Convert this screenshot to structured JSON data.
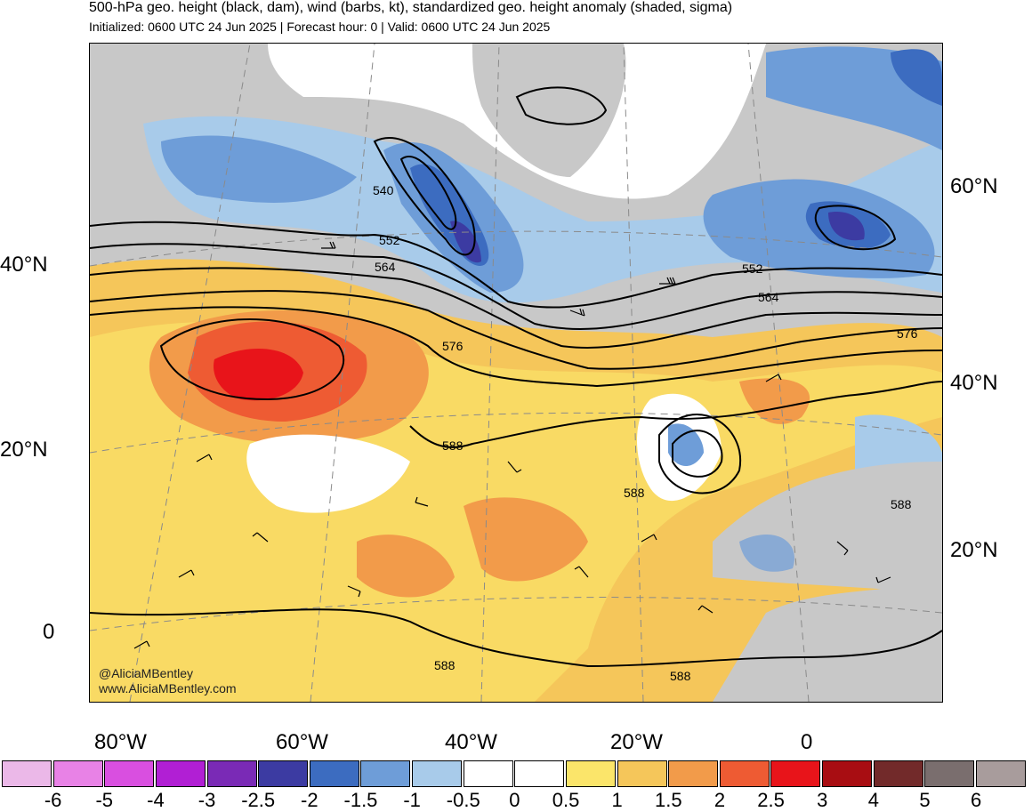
{
  "header": {
    "title": "500-hPa geo. height (black, dam), wind (barbs, kt), standardized geo. height anomaly (shaded, sigma)",
    "subtitle": "Initialized: 0600 UTC 24 Jun 2025 | Forecast hour: 0 | Valid: 0600 UTC 24 Jun 2025"
  },
  "axes": {
    "left_lat_labels": [
      "40°N",
      "20°N",
      "0"
    ],
    "right_lat_labels": [
      "60°N",
      "40°N",
      "20°N"
    ],
    "bottom_lon_labels": [
      "80°W",
      "60°W",
      "40°W",
      "20°W",
      "0"
    ]
  },
  "contour_labels": [
    "540",
    "552",
    "564",
    "576",
    "588",
    "552",
    "564",
    "576",
    "588",
    "588",
    "588",
    "588"
  ],
  "credits": {
    "handle": "@AliciaMBentley",
    "site": "www.AliciaMBentley.com"
  },
  "colorbar": {
    "colors": [
      "#ebb8e8",
      "#e882e6",
      "#d94fe0",
      "#b11fd4",
      "#7a2ab6",
      "#3c3ba2",
      "#3c6cc0",
      "#6e9dd8",
      "#a8cbea",
      "#ffffff",
      "#ffffff",
      "#fbe56a",
      "#f5c65a",
      "#f29b4a",
      "#ee5b33",
      "#e8141a",
      "#a80d12",
      "#722a2a",
      "#7a6e6e",
      "#a89c9c"
    ],
    "ticks": [
      "-6",
      "-5",
      "-4",
      "-3",
      "-2.5",
      "-2",
      "-1.5",
      "-1",
      "-0.5",
      "0",
      "0.5",
      "1",
      "1.5",
      "2",
      "2.5",
      "3",
      "4",
      "5",
      "6"
    ]
  }
}
